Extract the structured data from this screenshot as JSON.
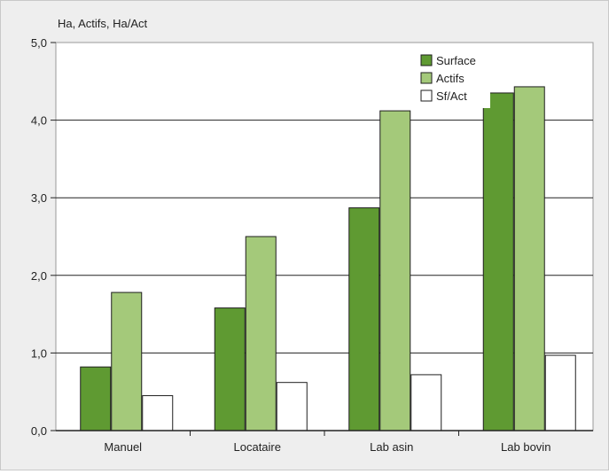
{
  "chart_data": {
    "type": "bar",
    "ylabel": "Ha, Actifs, Ha/Act",
    "categories": [
      "Manuel",
      "Locataire",
      "Lab asin",
      "Lab bovin"
    ],
    "series": [
      {
        "name": "Surface",
        "values": [
          0.82,
          1.58,
          2.87,
          4.35
        ],
        "color": "#5f9a32"
      },
      {
        "name": "Actifs",
        "values": [
          1.78,
          2.5,
          4.12,
          4.43
        ],
        "color": "#a4c97a"
      },
      {
        "name": "Sf/Act",
        "values": [
          0.45,
          0.62,
          0.72,
          0.97
        ],
        "color": "#ffffff"
      }
    ],
    "ylim": [
      0,
      5
    ],
    "yticks": [
      0,
      1,
      2,
      3,
      4,
      5
    ],
    "ytick_labels": [
      "0,0",
      "1,0",
      "2,0",
      "3,0",
      "4,0",
      "5,0"
    ],
    "grid": true,
    "legend": "top-right"
  }
}
